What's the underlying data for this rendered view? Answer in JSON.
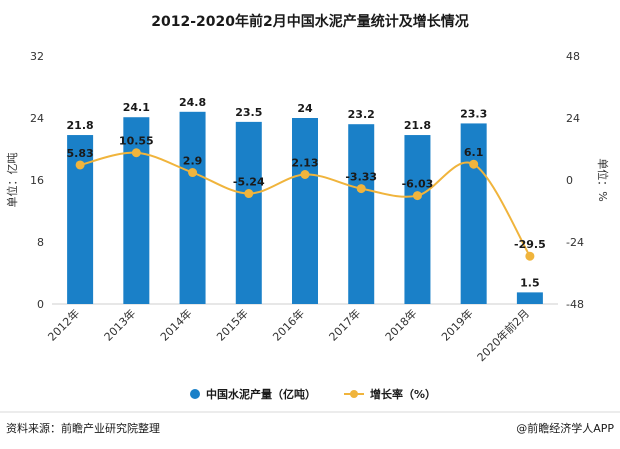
{
  "chart_data": {
    "type": "bar+line",
    "title": "2012-2020年前2月中国水泥产量统计及增长情况",
    "categories": [
      "2012年",
      "2013年",
      "2014年",
      "2015年",
      "2016年",
      "2017年",
      "2018年",
      "2019年",
      "2020年前2月"
    ],
    "series": [
      {
        "name": "中国水泥产量（亿吨）",
        "type": "bar",
        "axis": "left",
        "values": [
          21.8,
          24.1,
          24.8,
          23.5,
          24,
          23.2,
          21.8,
          23.3,
          1.5
        ],
        "labels": [
          "21.8",
          "24.1",
          "24.8",
          "23.5",
          "24",
          "23.2",
          "21.8",
          "23.3",
          "1.5"
        ],
        "color": "#1a80c8"
      },
      {
        "name": "增长率（%）",
        "type": "line",
        "axis": "right",
        "values": [
          5.83,
          10.55,
          2.9,
          -5.24,
          2.13,
          -3.33,
          -6.03,
          6.1,
          -29.5
        ],
        "labels": [
          "5.83",
          "10.55",
          "2.9",
          "-5.24",
          "2.13",
          "-3.33",
          "-6.03",
          "6.1",
          "-29.5"
        ],
        "color": "#f0b43c"
      }
    ],
    "y_left": {
      "label": "单位：亿吨",
      "min": 0,
      "max": 32,
      "ticks": [
        0,
        8,
        16,
        24,
        32
      ]
    },
    "y_right": {
      "label": "单位：%",
      "min": -48,
      "max": 48,
      "ticks": [
        -48,
        -24,
        0,
        24,
        48
      ]
    },
    "grid": false,
    "legend_position": "bottom"
  },
  "footer": {
    "source": "资料来源：前瞻产业研究院整理",
    "brand": "@前瞻经济学人APP"
  }
}
